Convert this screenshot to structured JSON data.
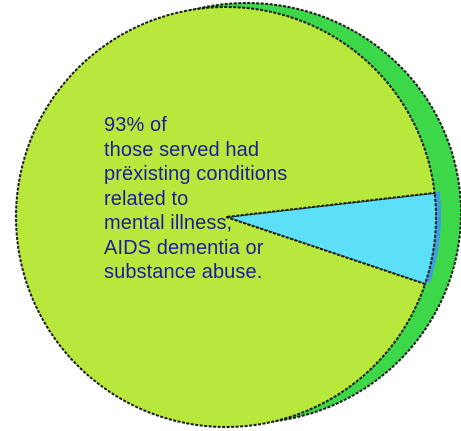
{
  "chart_data": {
    "type": "pie",
    "slices": [
      {
        "value": 93,
        "color": "#b8e83c"
      },
      {
        "value": 7,
        "color": "#5ce0f8"
      }
    ],
    "annotation_lines": [
      "93% of",
      "those served had",
      "prëxisting conditions",
      "related to",
      "mental illness,",
      "AIDS dementia or",
      "substance abuse."
    ]
  },
  "colors": {
    "pie_side": "#3cd84a",
    "slice_side": "#3a9ee0",
    "outline": "#1a1a1a",
    "text": "#1c1c9c"
  }
}
